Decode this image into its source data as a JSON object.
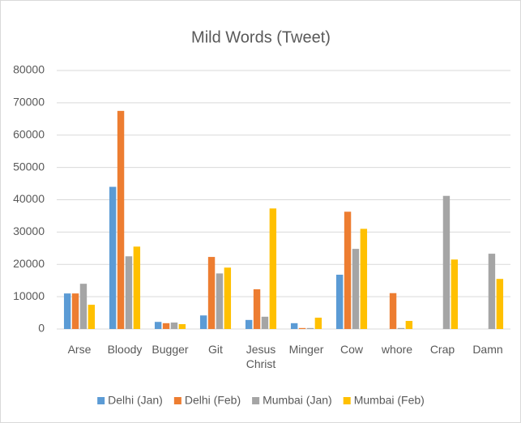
{
  "chart_data": {
    "type": "bar",
    "title": "Mild Words (Tweet)",
    "categories": [
      "Arse",
      "Bloody",
      "Bugger",
      "Git",
      "Jesus Christ",
      "Minger",
      "Cow",
      "whore",
      "Crap",
      "Damn"
    ],
    "series": [
      {
        "name": "Delhi (Jan)",
        "color": "#5b9bd5",
        "values": [
          11000,
          44000,
          2200,
          4200,
          2800,
          1800,
          16800,
          0,
          0,
          0
        ]
      },
      {
        "name": "Delhi (Feb)",
        "color": "#ed7d31",
        "values": [
          11000,
          67500,
          1800,
          22300,
          12300,
          300,
          36300,
          11100,
          0,
          0
        ]
      },
      {
        "name": "Mumbai (Jan)",
        "color": "#a5a5a5",
        "values": [
          14000,
          22500,
          2000,
          17200,
          3800,
          300,
          24800,
          300,
          41200,
          23300
        ]
      },
      {
        "name": "Mumbai (Feb)",
        "color": "#ffc000",
        "values": [
          7500,
          25500,
          1500,
          19000,
          37300,
          3500,
          31000,
          2500,
          21500,
          15500
        ]
      }
    ],
    "ylim": [
      0,
      80000
    ],
    "yticks": [
      0,
      10000,
      20000,
      30000,
      40000,
      50000,
      60000,
      70000,
      80000
    ],
    "grid": true,
    "legend": "bottom"
  }
}
